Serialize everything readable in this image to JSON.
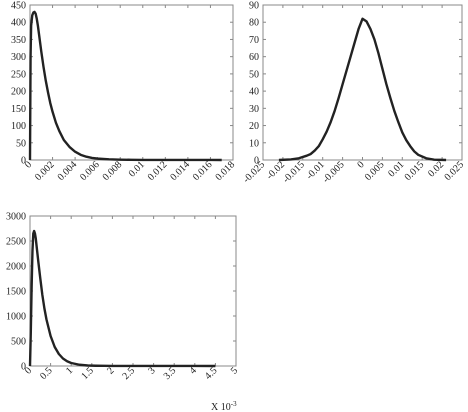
{
  "chart_data": [
    {
      "type": "line",
      "xlim": [
        0,
        0.018
      ],
      "ylim": [
        0,
        450
      ],
      "xticks": [
        0,
        0.002,
        0.004,
        0.006,
        0.008,
        0.01,
        0.012,
        0.014,
        0.016,
        0.018
      ],
      "xtick_labels": [
        "0",
        "0.002",
        "0.004",
        "0.006",
        "0.008",
        "0.01",
        "0.012",
        "0.014",
        "0.016",
        "0.018"
      ],
      "yticks": [
        0,
        50,
        100,
        150,
        200,
        250,
        300,
        350,
        400,
        450
      ],
      "ytick_labels": [
        "0",
        "50",
        "100",
        "150",
        "200",
        "250",
        "300",
        "350",
        "400",
        "450"
      ],
      "series": [
        {
          "x": [
            0,
            5e-05,
            0.0001,
            0.0002,
            0.0003,
            0.0004,
            0.0005,
            0.0006,
            0.0007,
            0.0008,
            0.0009,
            0.001,
            0.0012,
            0.0014,
            0.0016,
            0.0018,
            0.002,
            0.0023,
            0.0026,
            0.003,
            0.0035,
            0.004,
            0.0045,
            0.005,
            0.0055,
            0.006,
            0.007,
            0.008,
            0.009,
            0.01,
            0.012,
            0.014,
            0.016,
            0.017
          ],
          "y": [
            0,
            300,
            390,
            420,
            428,
            430,
            425,
            410,
            390,
            365,
            340,
            315,
            270,
            230,
            196,
            165,
            140,
            108,
            84,
            58,
            38,
            24,
            15,
            9.5,
            6,
            4,
            2,
            1,
            0.5,
            0.3,
            0.2,
            0.1,
            0.1,
            0
          ]
        }
      ]
    },
    {
      "type": "line",
      "xlim": [
        -0.025,
        0.025
      ],
      "ylim": [
        0,
        90
      ],
      "xticks": [
        -0.025,
        -0.02,
        -0.015,
        -0.01,
        -0.005,
        0,
        0.005,
        0.01,
        0.015,
        0.02,
        0.025
      ],
      "xtick_labels": [
        "-0.025",
        "-0.02",
        "-0.015",
        "-0.01",
        "-0.005",
        "0",
        "0.005",
        "0.01",
        "0.015",
        "0.02",
        "0.025"
      ],
      "yticks": [
        0,
        10,
        20,
        30,
        40,
        50,
        60,
        70,
        80,
        90
      ],
      "ytick_labels": [
        "0",
        "10",
        "20",
        "30",
        "40",
        "50",
        "60",
        "70",
        "80",
        "90"
      ],
      "series": [
        {
          "x": [
            -0.021,
            -0.018,
            -0.016,
            -0.014,
            -0.013,
            -0.012,
            -0.011,
            -0.01,
            -0.009,
            -0.008,
            -0.007,
            -0.006,
            -0.005,
            -0.004,
            -0.003,
            -0.002,
            -0.001,
            0,
            0.001,
            0.002,
            0.003,
            0.004,
            0.005,
            0.006,
            0.007,
            0.008,
            0.009,
            0.01,
            0.011,
            0.012,
            0.013,
            0.014,
            0.016,
            0.018,
            0.021
          ],
          "y": [
            0,
            0.3,
            1,
            2.5,
            3.5,
            5.5,
            8,
            12,
            16.5,
            22,
            28.5,
            36,
            44,
            52,
            60,
            68,
            76,
            82,
            80.5,
            76,
            70,
            62,
            53,
            44,
            36,
            28.5,
            22,
            16,
            11.5,
            8,
            5,
            3,
            1,
            0.2,
            0
          ]
        }
      ]
    },
    {
      "type": "line",
      "xlim": [
        0,
        5
      ],
      "ylim": [
        0,
        3000
      ],
      "xticks": [
        0,
        0.5,
        1,
        1.5,
        2,
        2.5,
        3,
        3.5,
        4,
        4.5,
        5
      ],
      "xtick_labels": [
        "0",
        "0.5",
        "1",
        "1.5",
        "2",
        "2.5",
        "3",
        "3.5",
        "4",
        "4.5",
        "5"
      ],
      "yticks": [
        0,
        500,
        1000,
        1500,
        2000,
        2500,
        3000
      ],
      "ytick_labels": [
        "0",
        "500",
        "1000",
        "1500",
        "2000",
        "2500",
        "3000"
      ],
      "x_multiplier": "X 10",
      "x_multiplier_exponent": "-3",
      "series": [
        {
          "x": [
            0,
            0.02,
            0.04,
            0.06,
            0.08,
            0.1,
            0.12,
            0.14,
            0.16,
            0.18,
            0.2,
            0.25,
            0.3,
            0.35,
            0.4,
            0.5,
            0.6,
            0.7,
            0.8,
            0.9,
            1.0,
            1.2,
            1.4,
            1.6,
            1.8,
            2.0,
            3.0,
            4.0,
            4.5
          ],
          "y": [
            0,
            700,
            1600,
            2300,
            2650,
            2700,
            2650,
            2550,
            2400,
            2250,
            2100,
            1750,
            1420,
            1150,
            930,
            600,
            380,
            240,
            150,
            95,
            60,
            25,
            10,
            5,
            3,
            2,
            1,
            1,
            0
          ]
        }
      ]
    }
  ]
}
